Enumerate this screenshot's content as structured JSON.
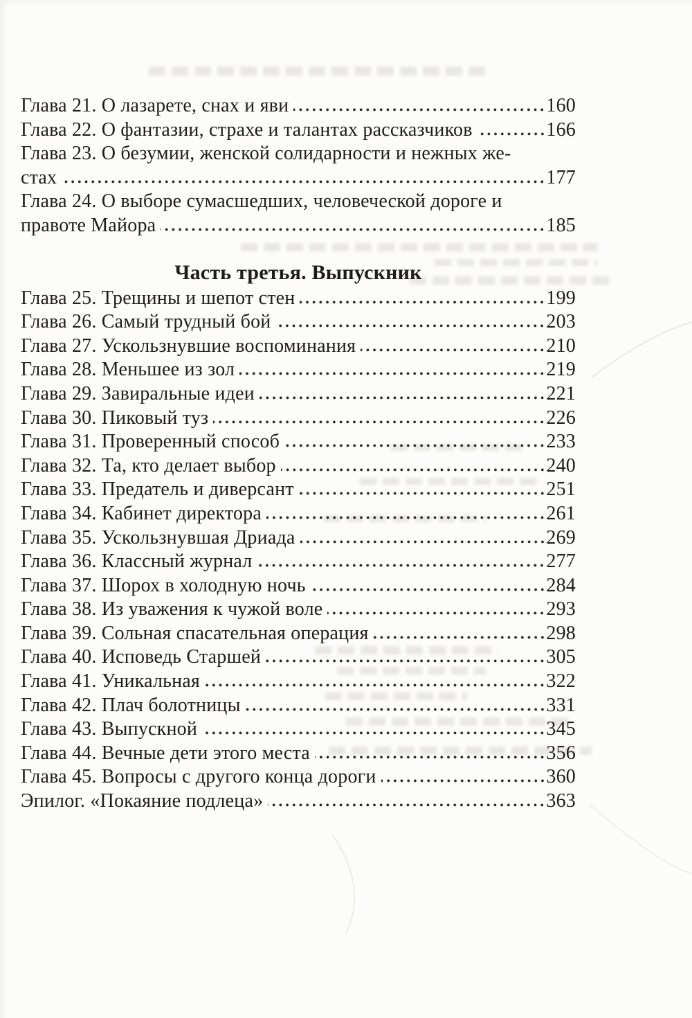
{
  "page": {
    "paper_color": "#fcfcfa",
    "ink_color": "#1f1d1a"
  },
  "toc": {
    "part_heading": "Часть третья. Выпускник",
    "entries_top": [
      {
        "lines": [
          "Глава 21. О лазарете, снах и яви"
        ],
        "page": "160"
      },
      {
        "lines": [
          "Глава 22. О фантазии, страхе и талантах рассказчиков"
        ],
        "page": "166"
      },
      {
        "lines": [
          "Глава 23. О безумии, женской солидарности и нежных же-",
          "стах"
        ],
        "page": "177"
      },
      {
        "lines": [
          "Глава 24. О выборе сумасшедших, человеческой дороге и",
          "правоте Майора"
        ],
        "page": "185"
      }
    ],
    "entries_bottom": [
      {
        "lines": [
          "Глава 25. Трещины и шепот стен"
        ],
        "page": "199"
      },
      {
        "lines": [
          "Глава 26. Самый трудный бой"
        ],
        "page": "203"
      },
      {
        "lines": [
          "Глава 27. Ускользнувшие воспоминания"
        ],
        "page": "210"
      },
      {
        "lines": [
          "Глава 28. Меньшее из зол"
        ],
        "page": "219"
      },
      {
        "lines": [
          "Глава 29. Завиральные идеи"
        ],
        "page": "221"
      },
      {
        "lines": [
          "Глава 30. Пиковый туз"
        ],
        "page": "226"
      },
      {
        "lines": [
          "Глава 31. Проверенный способ"
        ],
        "page": "233"
      },
      {
        "lines": [
          "Глава 32. Та, кто делает выбор"
        ],
        "page": "240"
      },
      {
        "lines": [
          "Глава 33. Предатель и диверсант"
        ],
        "page": "251"
      },
      {
        "lines": [
          "Глава 34. Кабинет директора"
        ],
        "page": "261"
      },
      {
        "lines": [
          "Глава 35. Ускользнувшая Дриада"
        ],
        "page": "269"
      },
      {
        "lines": [
          "Глава 36. Классный журнал"
        ],
        "page": "277"
      },
      {
        "lines": [
          "Глава 37. Шорох в холодную ночь"
        ],
        "page": "284"
      },
      {
        "lines": [
          "Глава 38. Из уважения к чужой воле"
        ],
        "page": "293"
      },
      {
        "lines": [
          "Глава 39. Сольная спасательная операция"
        ],
        "page": "298"
      },
      {
        "lines": [
          "Глава 40. Исповедь Старшей"
        ],
        "page": "305"
      },
      {
        "lines": [
          "Глава 41. Уникальная"
        ],
        "page": "322"
      },
      {
        "lines": [
          "Глава 42. Плач болотницы"
        ],
        "page": "331"
      },
      {
        "lines": [
          "Глава 43. Выпускной"
        ],
        "page": "345"
      },
      {
        "lines": [
          "Глава 44. Вечные дети этого места"
        ],
        "page": "356"
      },
      {
        "lines": [
          "Глава 45. Вопросы с другого конца дороги"
        ],
        "page": "360"
      },
      {
        "lines": [
          "Эпилог. «Покаяние подлеца»"
        ],
        "page": "363"
      }
    ]
  }
}
